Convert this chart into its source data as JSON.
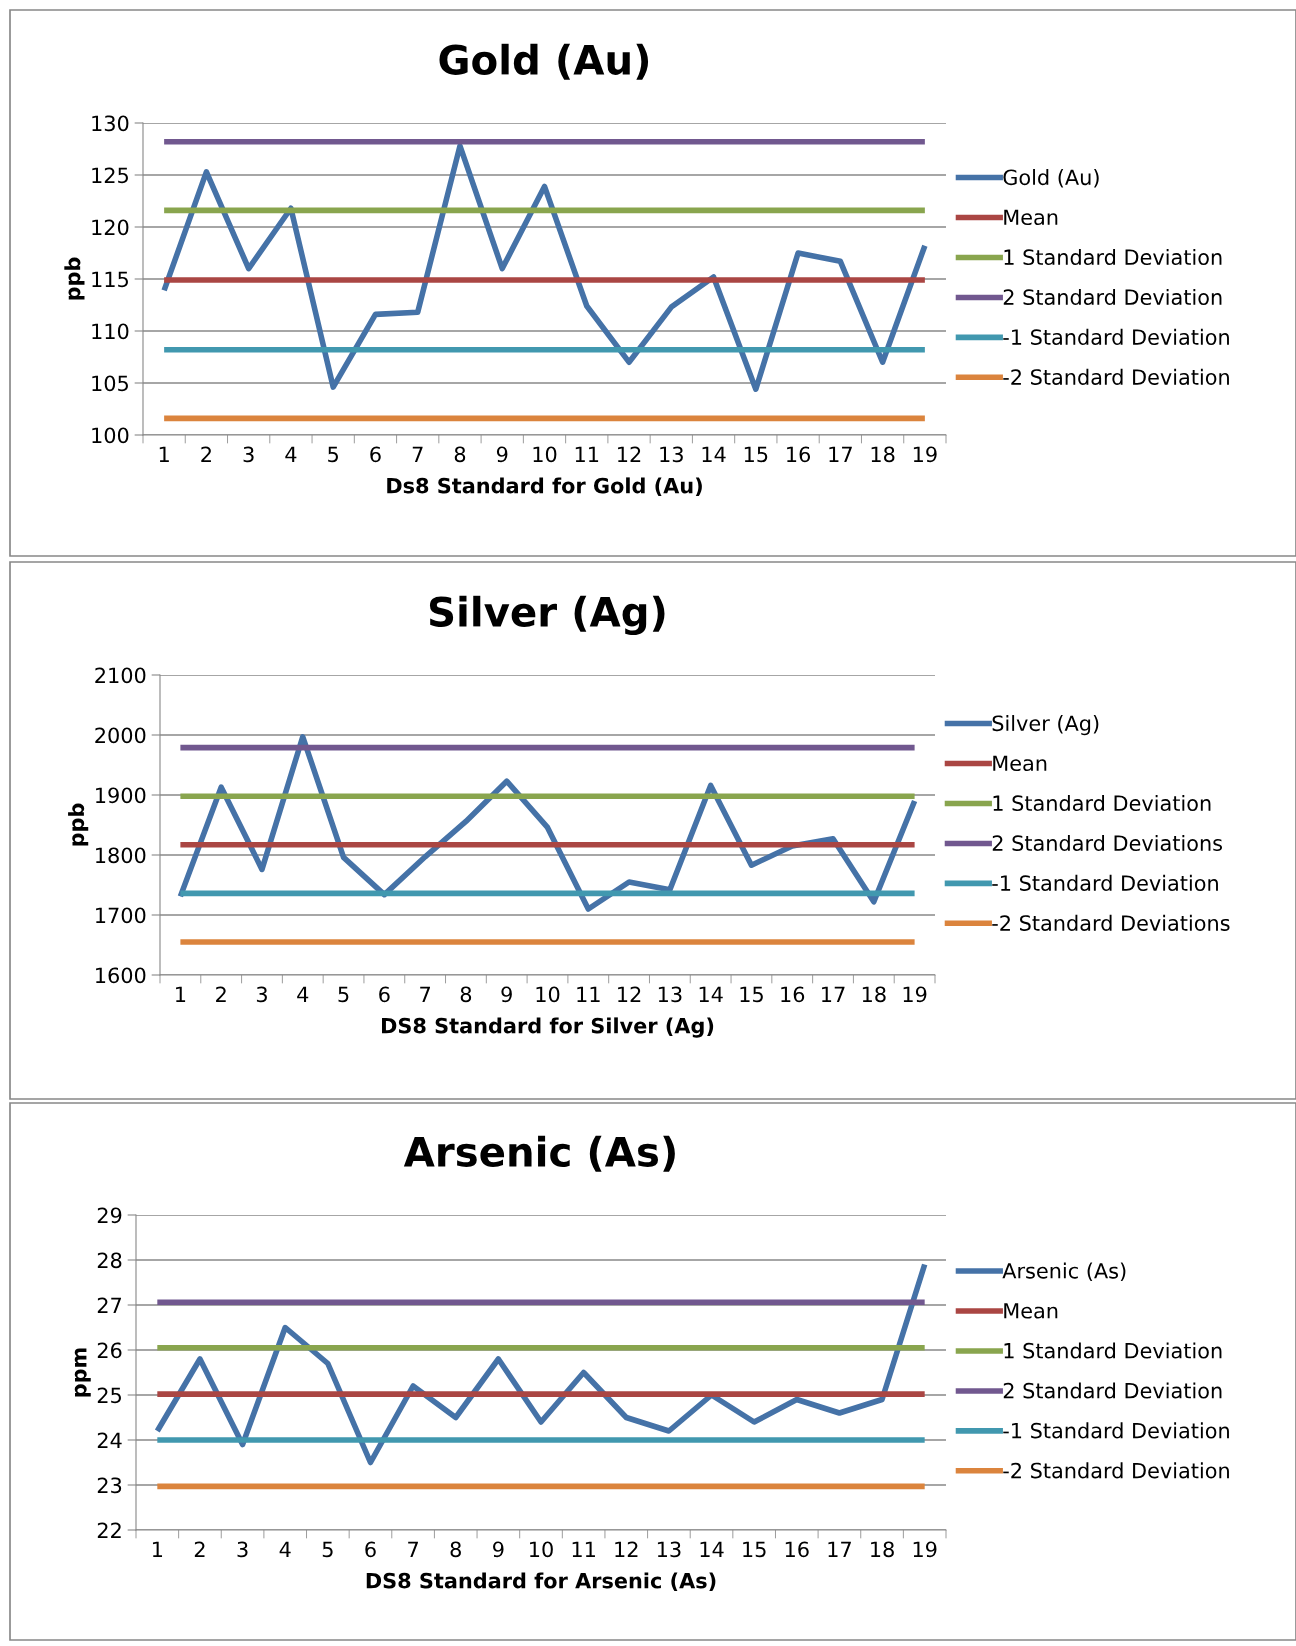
{
  "chart_data": [
    {
      "type": "line",
      "title": "Gold (Au)",
      "xlabel": "Ds8 Standard for Gold (Au)",
      "ylabel": "ppb",
      "categories": [
        "1",
        "2",
        "3",
        "4",
        "5",
        "6",
        "7",
        "8",
        "9",
        "10",
        "11",
        "12",
        "13",
        "14",
        "15",
        "16",
        "17",
        "18",
        "19"
      ],
      "ylim": [
        100,
        130
      ],
      "yticks": [
        100,
        105,
        110,
        115,
        120,
        125,
        130
      ],
      "grid": "y",
      "legend": "right",
      "marker": "none",
      "line_style": "solid",
      "series": [
        {
          "name": "Gold (Au)",
          "color": "#4572a7",
          "values": [
            113.9,
            125.3,
            116.0,
            121.8,
            104.6,
            111.6,
            111.8,
            127.8,
            116.0,
            123.9,
            112.4,
            107.0,
            112.3,
            115.2,
            104.4,
            117.5,
            116.7,
            107.0,
            118.2
          ]
        },
        {
          "name": "Mean",
          "color": "#aa4643",
          "values": [
            114.9,
            114.9,
            114.9,
            114.9,
            114.9,
            114.9,
            114.9,
            114.9,
            114.9,
            114.9,
            114.9,
            114.9,
            114.9,
            114.9,
            114.9,
            114.9,
            114.9,
            114.9,
            114.9
          ]
        },
        {
          "name": "1 Standard Deviation",
          "color": "#89a54e",
          "values": [
            121.6,
            121.6,
            121.6,
            121.6,
            121.6,
            121.6,
            121.6,
            121.6,
            121.6,
            121.6,
            121.6,
            121.6,
            121.6,
            121.6,
            121.6,
            121.6,
            121.6,
            121.6,
            121.6
          ]
        },
        {
          "name": "2 Standard Deviation",
          "color": "#71588f",
          "values": [
            128.2,
            128.2,
            128.2,
            128.2,
            128.2,
            128.2,
            128.2,
            128.2,
            128.2,
            128.2,
            128.2,
            128.2,
            128.2,
            128.2,
            128.2,
            128.2,
            128.2,
            128.2,
            128.2
          ]
        },
        {
          "name": "-1 Standard Deviation",
          "color": "#4198af",
          "values": [
            108.2,
            108.2,
            108.2,
            108.2,
            108.2,
            108.2,
            108.2,
            108.2,
            108.2,
            108.2,
            108.2,
            108.2,
            108.2,
            108.2,
            108.2,
            108.2,
            108.2,
            108.2,
            108.2
          ]
        },
        {
          "name": "-2 Standard Deviation",
          "color": "#db843d",
          "values": [
            101.6,
            101.6,
            101.6,
            101.6,
            101.6,
            101.6,
            101.6,
            101.6,
            101.6,
            101.6,
            101.6,
            101.6,
            101.6,
            101.6,
            101.6,
            101.6,
            101.6,
            101.6,
            101.6
          ]
        }
      ]
    },
    {
      "type": "line",
      "title": "Silver (Ag)",
      "xlabel": "DS8 Standard for Silver (Ag)",
      "ylabel": "ppb",
      "categories": [
        "1",
        "2",
        "3",
        "4",
        "5",
        "6",
        "7",
        "8",
        "9",
        "10",
        "11",
        "12",
        "13",
        "14",
        "15",
        "16",
        "17",
        "18",
        "19"
      ],
      "ylim": [
        1600,
        2100
      ],
      "yticks": [
        1600,
        1700,
        1800,
        1900,
        2000,
        2100
      ],
      "grid": "y",
      "legend": "right",
      "marker": "none",
      "line_style": "solid",
      "series": [
        {
          "name": "Silver (Ag)",
          "color": "#4572a7",
          "values": [
            1731,
            1913,
            1776,
            1997,
            1796,
            1734,
            1797,
            1856,
            1923,
            1846,
            1710,
            1755,
            1742,
            1916,
            1783,
            1815,
            1827,
            1722,
            1890
          ]
        },
        {
          "name": "Mean",
          "color": "#aa4643",
          "values": [
            1817,
            1817,
            1817,
            1817,
            1817,
            1817,
            1817,
            1817,
            1817,
            1817,
            1817,
            1817,
            1817,
            1817,
            1817,
            1817,
            1817,
            1817,
            1817
          ]
        },
        {
          "name": "1 Standard Deviation",
          "color": "#89a54e",
          "values": [
            1898,
            1898,
            1898,
            1898,
            1898,
            1898,
            1898,
            1898,
            1898,
            1898,
            1898,
            1898,
            1898,
            1898,
            1898,
            1898,
            1898,
            1898,
            1898
          ]
        },
        {
          "name": "2 Standard Deviations",
          "color": "#71588f",
          "values": [
            1979,
            1979,
            1979,
            1979,
            1979,
            1979,
            1979,
            1979,
            1979,
            1979,
            1979,
            1979,
            1979,
            1979,
            1979,
            1979,
            1979,
            1979,
            1979
          ]
        },
        {
          "name": "-1 Standard Deviation",
          "color": "#4198af",
          "values": [
            1736,
            1736,
            1736,
            1736,
            1736,
            1736,
            1736,
            1736,
            1736,
            1736,
            1736,
            1736,
            1736,
            1736,
            1736,
            1736,
            1736,
            1736,
            1736
          ]
        },
        {
          "name": "-2 Standard Deviations",
          "color": "#db843d",
          "values": [
            1655,
            1655,
            1655,
            1655,
            1655,
            1655,
            1655,
            1655,
            1655,
            1655,
            1655,
            1655,
            1655,
            1655,
            1655,
            1655,
            1655,
            1655,
            1655
          ]
        }
      ]
    },
    {
      "type": "line",
      "title": "Arsenic (As)",
      "xlabel": "DS8 Standard for Arsenic (As)",
      "ylabel": "ppm",
      "categories": [
        "1",
        "2",
        "3",
        "4",
        "5",
        "6",
        "7",
        "8",
        "9",
        "10",
        "11",
        "12",
        "13",
        "14",
        "15",
        "16",
        "17",
        "18",
        "19"
      ],
      "ylim": [
        22,
        29
      ],
      "yticks": [
        22,
        23,
        24,
        25,
        26,
        27,
        28,
        29
      ],
      "grid": "y",
      "legend": "right",
      "marker": "none",
      "line_style": "solid",
      "series": [
        {
          "name": "Arsenic (As)",
          "color": "#4572a7",
          "values": [
            24.2,
            25.8,
            23.9,
            26.5,
            25.7,
            23.5,
            25.2,
            24.5,
            25.8,
            24.4,
            25.5,
            24.5,
            24.2,
            25.0,
            24.4,
            24.9,
            24.6,
            24.9,
            27.9
          ]
        },
        {
          "name": "Mean",
          "color": "#aa4643",
          "values": [
            25.02,
            25.02,
            25.02,
            25.02,
            25.02,
            25.02,
            25.02,
            25.02,
            25.02,
            25.02,
            25.02,
            25.02,
            25.02,
            25.02,
            25.02,
            25.02,
            25.02,
            25.02,
            25.02
          ]
        },
        {
          "name": "1 Standard Deviation",
          "color": "#89a54e",
          "values": [
            26.05,
            26.05,
            26.05,
            26.05,
            26.05,
            26.05,
            26.05,
            26.05,
            26.05,
            26.05,
            26.05,
            26.05,
            26.05,
            26.05,
            26.05,
            26.05,
            26.05,
            26.05,
            26.05
          ]
        },
        {
          "name": "2 Standard Deviation",
          "color": "#71588f",
          "values": [
            27.06,
            27.06,
            27.06,
            27.06,
            27.06,
            27.06,
            27.06,
            27.06,
            27.06,
            27.06,
            27.06,
            27.06,
            27.06,
            27.06,
            27.06,
            27.06,
            27.06,
            27.06,
            27.06
          ]
        },
        {
          "name": "-1 Standard Deviation",
          "color": "#4198af",
          "values": [
            24.0,
            24.0,
            24.0,
            24.0,
            24.0,
            24.0,
            24.0,
            24.0,
            24.0,
            24.0,
            24.0,
            24.0,
            24.0,
            24.0,
            24.0,
            24.0,
            24.0,
            24.0,
            24.0
          ]
        },
        {
          "name": "-2 Standard Deviation",
          "color": "#db843d",
          "values": [
            22.97,
            22.97,
            22.97,
            22.97,
            22.97,
            22.97,
            22.97,
            22.97,
            22.97,
            22.97,
            22.97,
            22.97,
            22.97,
            22.97,
            22.97,
            22.97,
            22.97,
            22.97,
            22.97
          ]
        }
      ]
    }
  ]
}
